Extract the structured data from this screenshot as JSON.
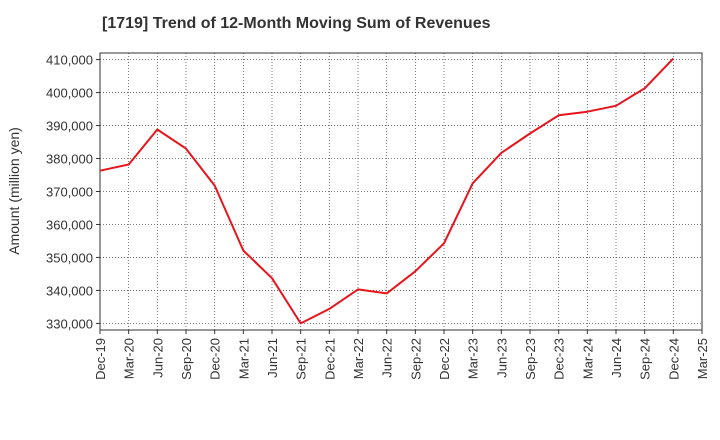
{
  "chart_data": {
    "type": "line",
    "title": "[1719]  Trend of 12-Month Moving Sum of Revenues",
    "xlabel": "",
    "ylabel": "Amount (million yen)",
    "ylim": [
      328000,
      412000
    ],
    "yticks": [
      330000,
      340000,
      350000,
      360000,
      370000,
      380000,
      390000,
      400000,
      410000
    ],
    "ytick_labels": [
      "330,000",
      "340,000",
      "350,000",
      "360,000",
      "370,000",
      "380,000",
      "390,000",
      "400,000",
      "410,000"
    ],
    "categories": [
      "Dec-19",
      "Mar-20",
      "Jun-20",
      "Sep-20",
      "Dec-20",
      "Mar-21",
      "Jun-21",
      "Sep-21",
      "Dec-21",
      "Mar-22",
      "Jun-22",
      "Sep-22",
      "Dec-22",
      "Mar-23",
      "Jun-23",
      "Sep-23",
      "Dec-23",
      "Mar-24",
      "Jun-24",
      "Sep-24",
      "Dec-24",
      "Mar-25"
    ],
    "grid": true,
    "series": [
      {
        "color": "#e8141c",
        "values": [
          376300,
          378200,
          388800,
          383000,
          371800,
          352100,
          343700,
          330000,
          334400,
          340300,
          339100,
          345800,
          354300,
          372500,
          381700,
          387600,
          393100,
          394200,
          396000,
          401300,
          410300,
          null
        ]
      }
    ]
  }
}
